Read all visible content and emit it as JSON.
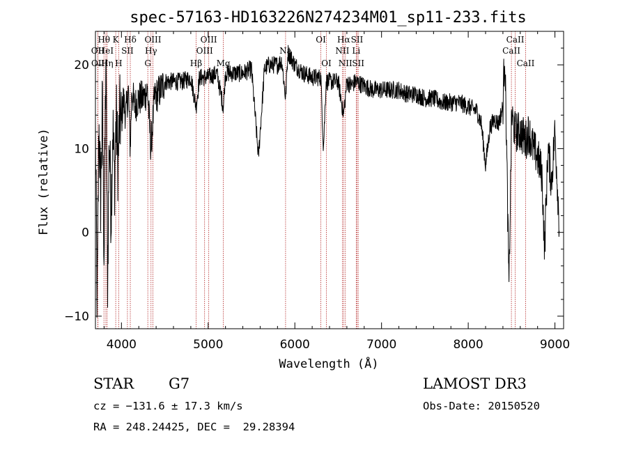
{
  "chart_data": {
    "type": "line",
    "title": "spec-57163-HD163226N274234M01_sp11-233.fits",
    "xlabel": "Wavelength (Å)",
    "ylabel": "Flux (relative)",
    "xlim": [
      3700,
      9100
    ],
    "ylim": [
      -11.5,
      24
    ],
    "xticks": [
      4000,
      5000,
      6000,
      7000,
      8000,
      9000
    ],
    "yticks": [
      -10,
      0,
      10,
      20
    ],
    "grid": false,
    "legend": "none",
    "colors": {
      "spectrum": "#000000",
      "lines": "#b22222"
    },
    "spectrum_nodes": [
      [
        3700,
        12
      ],
      [
        3720,
        -9
      ],
      [
        3740,
        13
      ],
      [
        3760,
        4
      ],
      [
        3780,
        15
      ],
      [
        3800,
        -3
      ],
      [
        3820,
        21
      ],
      [
        3840,
        -6
      ],
      [
        3860,
        12
      ],
      [
        3880,
        2
      ],
      [
        3900,
        13
      ],
      [
        3920,
        6
      ],
      [
        3940,
        14
      ],
      [
        3960,
        8
      ],
      [
        3980,
        14
      ],
      [
        4000,
        13
      ],
      [
        4020,
        16
      ],
      [
        4050,
        14
      ],
      [
        4080,
        17
      ],
      [
        4101,
        10
      ],
      [
        4120,
        17
      ],
      [
        4150,
        15
      ],
      [
        4200,
        16
      ],
      [
        4250,
        16
      ],
      [
        4300,
        17
      ],
      [
        4340,
        10
      ],
      [
        4380,
        16
      ],
      [
        4450,
        17
      ],
      [
        4500,
        18
      ],
      [
        4600,
        18
      ],
      [
        4700,
        18
      ],
      [
        4800,
        18.5
      ],
      [
        4861,
        15
      ],
      [
        4900,
        18.5
      ],
      [
        5000,
        18.5
      ],
      [
        5100,
        19
      ],
      [
        5175,
        15
      ],
      [
        5200,
        19
      ],
      [
        5300,
        19
      ],
      [
        5400,
        19
      ],
      [
        5500,
        19.5
      ],
      [
        5580,
        9
      ],
      [
        5650,
        19.5
      ],
      [
        5700,
        20
      ],
      [
        5800,
        20
      ],
      [
        5850,
        20.5
      ],
      [
        5893,
        16
      ],
      [
        5920,
        21.5
      ],
      [
        6000,
        20
      ],
      [
        6100,
        19
      ],
      [
        6200,
        18.5
      ],
      [
        6300,
        18.5
      ],
      [
        6330,
        10
      ],
      [
        6360,
        18
      ],
      [
        6450,
        18
      ],
      [
        6500,
        18
      ],
      [
        6563,
        14
      ],
      [
        6600,
        18
      ],
      [
        6650,
        17.5
      ],
      [
        6700,
        18
      ],
      [
        6800,
        17.5
      ],
      [
        6900,
        17
      ],
      [
        7000,
        17
      ],
      [
        7100,
        17
      ],
      [
        7200,
        17
      ],
      [
        7300,
        16.5
      ],
      [
        7400,
        16.5
      ],
      [
        7500,
        16
      ],
      [
        7600,
        16
      ],
      [
        7700,
        15.5
      ],
      [
        7800,
        15.5
      ],
      [
        7900,
        15.5
      ],
      [
        8000,
        15
      ],
      [
        8100,
        14.5
      ],
      [
        8150,
        13
      ],
      [
        8200,
        8
      ],
      [
        8250,
        12.5
      ],
      [
        8300,
        13.5
      ],
      [
        8350,
        13
      ],
      [
        8400,
        15
      ],
      [
        8420,
        22
      ],
      [
        8440,
        12
      ],
      [
        8470,
        -7
      ],
      [
        8500,
        14
      ],
      [
        8542,
        12
      ],
      [
        8600,
        12
      ],
      [
        8662,
        11
      ],
      [
        8700,
        12
      ],
      [
        8750,
        10
      ],
      [
        8800,
        9
      ],
      [
        8850,
        7
      ],
      [
        8880,
        -2
      ],
      [
        8920,
        10
      ],
      [
        8960,
        6
      ],
      [
        9000,
        12
      ],
      [
        9050,
        1
      ]
    ],
    "spectral_lines": [
      {
        "label": "Hθ",
        "wavelength": 3798,
        "row": 1
      },
      {
        "label": "OII",
        "wavelength": 3727,
        "row": 2
      },
      {
        "label": "OII",
        "wavelength": 3729,
        "row": 3
      },
      {
        "label": "HeI",
        "wavelength": 3820,
        "row": 2
      },
      {
        "label": "Hη",
        "wavelength": 3835,
        "row": 3
      },
      {
        "label": "K",
        "wavelength": 3934,
        "row": 1
      },
      {
        "label": "H",
        "wavelength": 3968,
        "row": 3
      },
      {
        "label": "SII",
        "wavelength": 4069,
        "row": 2
      },
      {
        "label": "Hδ",
        "wavelength": 4102,
        "row": 1
      },
      {
        "label": "OIII",
        "wavelength": 4363,
        "row": 1
      },
      {
        "label": "Hγ",
        "wavelength": 4341,
        "row": 2
      },
      {
        "label": "G",
        "wavelength": 4304,
        "row": 3
      },
      {
        "label": "Hβ",
        "wavelength": 4861,
        "row": 3
      },
      {
        "label": "OIII",
        "wavelength": 5007,
        "row": 1
      },
      {
        "label": "OIII",
        "wavelength": 4959,
        "row": 2
      },
      {
        "label": "Mg",
        "wavelength": 5175,
        "row": 3
      },
      {
        "label": "Na",
        "wavelength": 5893,
        "row": 2
      },
      {
        "label": "OI",
        "wavelength": 6300,
        "row": 1
      },
      {
        "label": "OI",
        "wavelength": 6364,
        "row": 3
      },
      {
        "label": "Hα",
        "wavelength": 6563,
        "row": 1
      },
      {
        "label": "NII",
        "wavelength": 6548,
        "row": 2
      },
      {
        "label": "NII",
        "wavelength": 6583,
        "row": 3
      },
      {
        "label": "SII",
        "wavelength": 6717,
        "row": 1
      },
      {
        "label": "Li",
        "wavelength": 6708,
        "row": 2
      },
      {
        "label": "SII",
        "wavelength": 6731,
        "row": 3
      },
      {
        "label": "CaII",
        "wavelength": 8498,
        "row": 2
      },
      {
        "label": "CaII",
        "wavelength": 8542,
        "row": 1
      },
      {
        "label": "CaII",
        "wavelength": 8662,
        "row": 3
      }
    ]
  },
  "info": {
    "object_class": "STAR",
    "subclass": "G7",
    "survey": "LAMOST DR3",
    "cz": "cz = −131.6 ± 17.3 km/s",
    "obs_date": "Obs-Date: 20150520",
    "coords": "RA = 248.24425, DEC =  29.28394"
  }
}
